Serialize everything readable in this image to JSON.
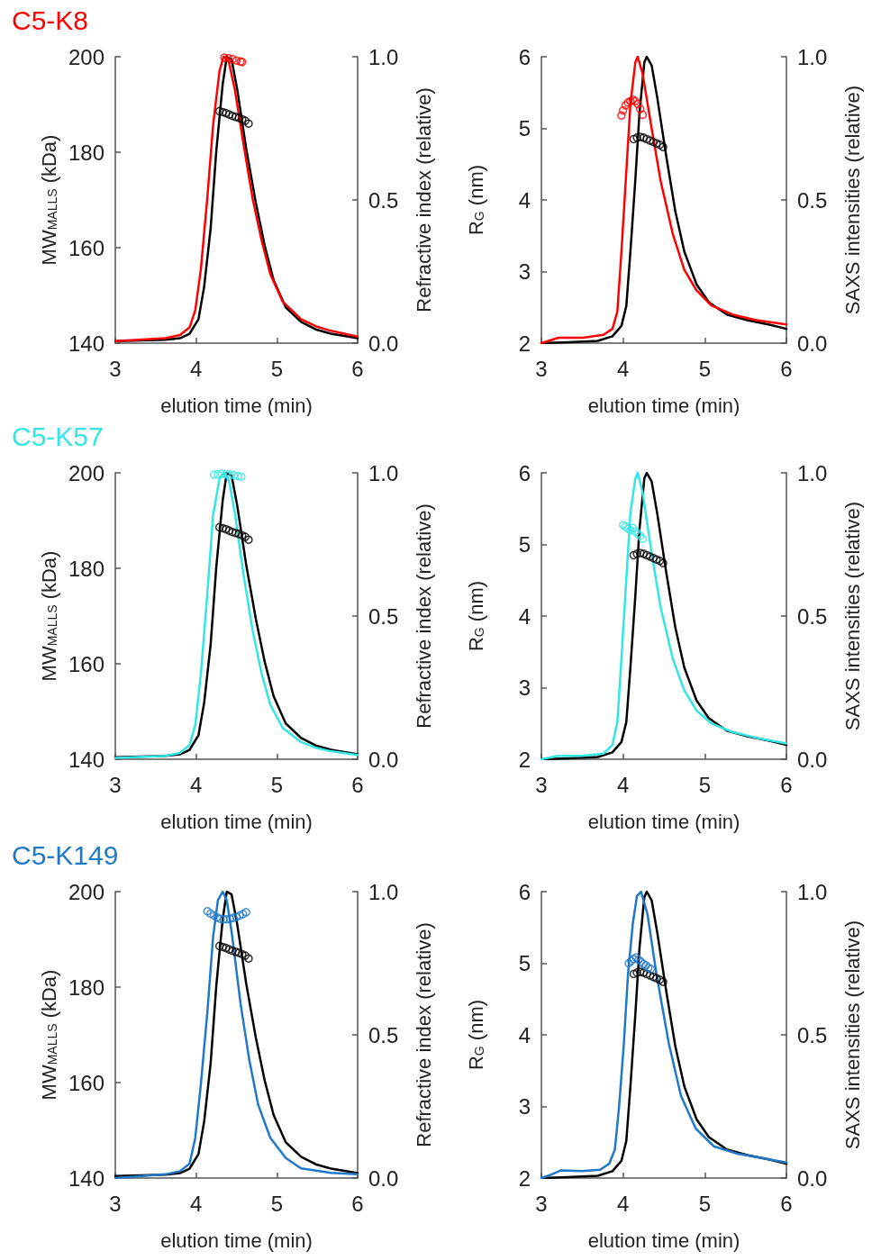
{
  "chart_data": [
    {
      "type": "line",
      "title": "C5-K8",
      "xlabel": "elution time (min)",
      "ylabel": "MW$_{MALLS}$ (kDa)",
      "y2label": "Refractive index (relative)",
      "xlim": [
        3,
        6
      ],
      "xticks": [
        3,
        4,
        5,
        6
      ],
      "ylim": [
        140,
        200
      ],
      "yticks": [
        140,
        160,
        180,
        200
      ],
      "y2lim": [
        0,
        1
      ],
      "y2ticks": [
        {
          "value": 0,
          "label": "0.0"
        },
        {
          "value": 0.5,
          "label": "0.5"
        },
        {
          "value": 1,
          "label": "1.0"
        }
      ],
      "series": [
        {
          "axis": "y2",
          "color": "#000000",
          "x": [
            3,
            3.62,
            3.8,
            3.92,
            4.03,
            4.1,
            4.18,
            4.25,
            4.33,
            4.38,
            4.44,
            4.51,
            4.62,
            4.74,
            4.85,
            4.96,
            5.11,
            5.3,
            5.48,
            5.67,
            6
          ],
          "values": [
            0.007,
            0.012,
            0.017,
            0.033,
            0.084,
            0.197,
            0.4,
            0.67,
            0.905,
            1,
            0.99,
            0.885,
            0.68,
            0.49,
            0.34,
            0.22,
            0.125,
            0.074,
            0.048,
            0.033,
            0.017
          ]
        },
        {
          "axis": "y2",
          "color": "#ff0000",
          "x": [
            3,
            3.62,
            3.8,
            3.92,
            3.99,
            4.06,
            4.14,
            4.21,
            4.29,
            4.34,
            4.4,
            4.48,
            4.59,
            4.7,
            4.81,
            4.92,
            5.07,
            5.3,
            5.48,
            5.67,
            6
          ],
          "values": [
            0.007,
            0.017,
            0.028,
            0.055,
            0.115,
            0.26,
            0.51,
            0.76,
            0.95,
            1,
            0.99,
            0.885,
            0.69,
            0.505,
            0.36,
            0.24,
            0.146,
            0.084,
            0.059,
            0.043,
            0.023
          ]
        },
        {
          "type": "scatter",
          "color": "#000000",
          "x": [
            4.29,
            4.33,
            4.37,
            4.41,
            4.45,
            4.49,
            4.53,
            4.57,
            4.61,
            4.65
          ],
          "values": [
            188.6,
            188.4,
            188.2,
            187.9,
            187.6,
            187.4,
            187.2,
            186.9,
            186.6,
            186.0
          ]
        },
        {
          "type": "scatter",
          "color": "#ff0000",
          "x": [
            4.35,
            4.4,
            4.45,
            4.5,
            4.55,
            4.57
          ],
          "values": [
            199.8,
            199.7,
            199.5,
            199.2,
            199.0,
            198.9
          ]
        }
      ]
    },
    {
      "type": "line",
      "xlabel": "elution time (min)",
      "ylabel": "R$_{G}$ (nm)",
      "y2label": "SAXS intensities (relative)",
      "xlim": [
        3,
        6
      ],
      "xticks": [
        3,
        4,
        5,
        6
      ],
      "ylim": [
        2,
        6
      ],
      "yticks": [
        2,
        3,
        4,
        5,
        6
      ],
      "y2lim": [
        0,
        1
      ],
      "y2ticks": [
        {
          "value": 0,
          "label": "0.0"
        },
        {
          "value": 0.5,
          "label": "0.5"
        },
        {
          "value": 1,
          "label": "1.0"
        }
      ],
      "series": [
        {
          "axis": "y2",
          "color": "#000000",
          "x": [
            3,
            3.32,
            3.69,
            3.87,
            3.98,
            4.04,
            4.09,
            4.15,
            4.2,
            4.26,
            4.29,
            4.35,
            4.42,
            4.53,
            4.64,
            4.75,
            4.9,
            5.05,
            5.27,
            5.52,
            5.78,
            6
          ],
          "values": [
            0,
            0.003,
            0.008,
            0.024,
            0.06,
            0.13,
            0.32,
            0.57,
            0.8,
            0.98,
            1,
            0.97,
            0.855,
            0.65,
            0.46,
            0.32,
            0.205,
            0.143,
            0.1,
            0.08,
            0.065,
            0.05
          ]
        },
        {
          "axis": "y2",
          "color": "#ff0000",
          "x": [
            3,
            3.21,
            3.51,
            3.76,
            3.87,
            3.93,
            3.98,
            4.04,
            4.09,
            4.15,
            4.18,
            4.24,
            4.35,
            4.46,
            4.61,
            4.75,
            4.9,
            5.08,
            5.34,
            5.63,
            6
          ],
          "values": [
            0,
            0.019,
            0.019,
            0.029,
            0.05,
            0.11,
            0.32,
            0.6,
            0.835,
            0.98,
            1,
            0.94,
            0.75,
            0.566,
            0.38,
            0.256,
            0.184,
            0.132,
            0.1,
            0.08,
            0.065
          ]
        },
        {
          "type": "scatter",
          "color": "#000000",
          "x": [
            4.13,
            4.17,
            4.21,
            4.25,
            4.29,
            4.33,
            4.37,
            4.41,
            4.45,
            4.49
          ],
          "values": [
            4.85,
            4.87,
            4.88,
            4.87,
            4.85,
            4.83,
            4.81,
            4.79,
            4.77,
            4.74
          ]
        },
        {
          "type": "scatter",
          "color": "#ff0000",
          "x": [
            3.98,
            4.0,
            4.03,
            4.06,
            4.09,
            4.12,
            4.15,
            4.18,
            4.21,
            4.24
          ],
          "values": [
            5.18,
            5.25,
            5.32,
            5.36,
            5.38,
            5.4,
            5.38,
            5.34,
            5.27,
            5.19
          ]
        }
      ]
    },
    {
      "type": "line",
      "title": "C5-K57",
      "xlabel": "elution time (min)",
      "ylabel": "MW$_{MALLS}$ (kDa)",
      "y2label": "Refractive index (relative)",
      "xlim": [
        3,
        6
      ],
      "xticks": [
        3,
        4,
        5,
        6
      ],
      "ylim": [
        140,
        200
      ],
      "yticks": [
        140,
        160,
        180,
        200
      ],
      "y2lim": [
        0,
        1
      ],
      "y2ticks": [
        {
          "value": 0,
          "label": "0.0"
        },
        {
          "value": 0.5,
          "label": "0.5"
        },
        {
          "value": 1,
          "label": "1.0"
        }
      ],
      "series": [
        {
          "axis": "y2",
          "color": "#000000",
          "x": [
            3,
            3.62,
            3.8,
            3.92,
            4.03,
            4.1,
            4.18,
            4.25,
            4.33,
            4.38,
            4.44,
            4.51,
            4.62,
            4.74,
            4.85,
            4.96,
            5.11,
            5.3,
            5.48,
            5.67,
            6
          ],
          "values": [
            0.007,
            0.012,
            0.017,
            0.033,
            0.084,
            0.197,
            0.4,
            0.67,
            0.905,
            1,
            0.99,
            0.885,
            0.68,
            0.49,
            0.34,
            0.22,
            0.125,
            0.074,
            0.048,
            0.033,
            0.017
          ]
        },
        {
          "axis": "y2",
          "color": "#33e6e6",
          "x": [
            3,
            3.62,
            3.8,
            3.92,
            3.99,
            4.06,
            4.14,
            4.21,
            4.29,
            4.35,
            4.41,
            4.48,
            4.59,
            4.7,
            4.81,
            4.92,
            5.07,
            5.3,
            5.48,
            5.67,
            6
          ],
          "values": [
            0.005,
            0.012,
            0.022,
            0.05,
            0.12,
            0.3,
            0.58,
            0.85,
            0.98,
            1,
            0.97,
            0.86,
            0.64,
            0.45,
            0.3,
            0.19,
            0.11,
            0.06,
            0.04,
            0.028,
            0.015
          ]
        },
        {
          "type": "scatter",
          "color": "#000000",
          "x": [
            4.29,
            4.33,
            4.37,
            4.41,
            4.45,
            4.49,
            4.53,
            4.57,
            4.61,
            4.65
          ],
          "values": [
            188.6,
            188.4,
            188.2,
            187.9,
            187.6,
            187.4,
            187.2,
            186.9,
            186.6,
            186.0
          ]
        },
        {
          "type": "scatter",
          "color": "#33e6e6",
          "x": [
            4.22,
            4.27,
            4.32,
            4.37,
            4.42,
            4.47,
            4.52,
            4.56
          ],
          "values": [
            199.6,
            199.7,
            199.8,
            199.7,
            199.6,
            199.5,
            199.3,
            199.2
          ]
        }
      ]
    },
    {
      "type": "line",
      "xlabel": "elution time (min)",
      "ylabel": "R$_{G}$ (nm)",
      "y2label": "SAXS intensities (relative)",
      "xlim": [
        3,
        6
      ],
      "xticks": [
        3,
        4,
        5,
        6
      ],
      "ylim": [
        2,
        6
      ],
      "yticks": [
        2,
        3,
        4,
        5,
        6
      ],
      "y2lim": [
        0,
        1
      ],
      "y2ticks": [
        {
          "value": 0,
          "label": "0.0"
        },
        {
          "value": 0.5,
          "label": "0.5"
        },
        {
          "value": 1,
          "label": "1.0"
        }
      ],
      "series": [
        {
          "axis": "y2",
          "color": "#000000",
          "x": [
            3,
            3.32,
            3.69,
            3.87,
            3.98,
            4.04,
            4.09,
            4.15,
            4.2,
            4.26,
            4.29,
            4.35,
            4.42,
            4.53,
            4.64,
            4.75,
            4.9,
            5.05,
            5.27,
            5.52,
            5.78,
            6
          ],
          "values": [
            0,
            0.003,
            0.008,
            0.024,
            0.06,
            0.13,
            0.32,
            0.57,
            0.8,
            0.98,
            1,
            0.97,
            0.855,
            0.65,
            0.46,
            0.32,
            0.205,
            0.143,
            0.1,
            0.08,
            0.065,
            0.05
          ]
        },
        {
          "axis": "y2",
          "color": "#33e6e6",
          "x": [
            3,
            3.2,
            3.5,
            3.76,
            3.87,
            3.93,
            3.98,
            4.04,
            4.09,
            4.15,
            4.18,
            4.24,
            4.35,
            4.46,
            4.61,
            4.75,
            4.9,
            5.08,
            5.34,
            5.63,
            6
          ],
          "values": [
            0,
            0.012,
            0.012,
            0.02,
            0.05,
            0.13,
            0.35,
            0.63,
            0.86,
            0.98,
            1,
            0.93,
            0.72,
            0.53,
            0.35,
            0.24,
            0.17,
            0.125,
            0.095,
            0.075,
            0.055
          ]
        },
        {
          "type": "scatter",
          "color": "#000000",
          "x": [
            4.13,
            4.17,
            4.21,
            4.25,
            4.29,
            4.33,
            4.37,
            4.41,
            4.45,
            4.49
          ],
          "values": [
            4.85,
            4.87,
            4.88,
            4.87,
            4.85,
            4.83,
            4.81,
            4.79,
            4.77,
            4.74
          ]
        },
        {
          "type": "scatter",
          "color": "#33e6e6",
          "x": [
            4.0,
            4.03,
            4.06,
            4.09,
            4.12,
            4.15,
            4.18,
            4.21,
            4.24
          ],
          "values": [
            5.27,
            5.25,
            5.22,
            5.2,
            5.23,
            5.18,
            5.15,
            5.12,
            5.08
          ]
        }
      ]
    },
    {
      "type": "line",
      "title": "C5-K149",
      "xlabel": "elution time (min)",
      "ylabel": "MW$_{MALLS}$ (kDa)",
      "y2label": "Refractive index (relative)",
      "xlim": [
        3,
        6
      ],
      "xticks": [
        3,
        4,
        5,
        6
      ],
      "ylim": [
        140,
        200
      ],
      "yticks": [
        140,
        160,
        180,
        200
      ],
      "y2lim": [
        0,
        1
      ],
      "y2ticks": [
        {
          "value": 0,
          "label": "0.0"
        },
        {
          "value": 0.5,
          "label": "0.5"
        },
        {
          "value": 1,
          "label": "1.0"
        }
      ],
      "series": [
        {
          "axis": "y2",
          "color": "#000000",
          "x": [
            3,
            3.62,
            3.8,
            3.92,
            4.03,
            4.1,
            4.18,
            4.25,
            4.33,
            4.38,
            4.44,
            4.51,
            4.62,
            4.74,
            4.85,
            4.96,
            5.11,
            5.3,
            5.48,
            5.67,
            6
          ],
          "values": [
            0.007,
            0.012,
            0.017,
            0.033,
            0.084,
            0.197,
            0.4,
            0.67,
            0.905,
            1,
            0.99,
            0.885,
            0.68,
            0.49,
            0.34,
            0.22,
            0.125,
            0.074,
            0.048,
            0.033,
            0.017
          ]
        },
        {
          "axis": "y2",
          "color": "#1f78c8",
          "x": [
            3,
            3.62,
            3.8,
            3.92,
            3.99,
            4.06,
            4.14,
            4.21,
            4.27,
            4.33,
            4.38,
            4.44,
            4.55,
            4.66,
            4.77,
            4.92,
            5.11,
            5.3,
            5.67,
            6
          ],
          "values": [
            0,
            0.013,
            0.024,
            0.05,
            0.14,
            0.33,
            0.58,
            0.84,
            0.97,
            1,
            0.97,
            0.86,
            0.61,
            0.41,
            0.255,
            0.14,
            0.07,
            0.034,
            0.018,
            0.013
          ]
        },
        {
          "type": "scatter",
          "color": "#000000",
          "x": [
            4.29,
            4.33,
            4.37,
            4.41,
            4.45,
            4.49,
            4.53,
            4.57,
            4.61,
            4.65
          ],
          "values": [
            188.6,
            188.4,
            188.2,
            187.9,
            187.6,
            187.4,
            187.2,
            186.9,
            186.6,
            186.0
          ]
        },
        {
          "type": "scatter",
          "color": "#1f78c8",
          "x": [
            4.14,
            4.18,
            4.22,
            4.26,
            4.3,
            4.34,
            4.38,
            4.42,
            4.46,
            4.5,
            4.54,
            4.58,
            4.62
          ],
          "values": [
            195.9,
            195.4,
            195.0,
            194.6,
            194.3,
            194.2,
            194.2,
            194.3,
            194.5,
            194.7,
            195.0,
            195.3,
            195.7
          ]
        }
      ]
    },
    {
      "type": "line",
      "xlabel": "elution time (min)",
      "ylabel": "R$_{G}$ (nm)",
      "y2label": "SAXS intensities (relative)",
      "xlim": [
        3,
        6
      ],
      "xticks": [
        3,
        4,
        5,
        6
      ],
      "ylim": [
        2,
        6
      ],
      "yticks": [
        2,
        3,
        4,
        5,
        6
      ],
      "y2lim": [
        0,
        1
      ],
      "y2ticks": [
        {
          "value": 0,
          "label": "0.0"
        },
        {
          "value": 0.5,
          "label": "0.5"
        },
        {
          "value": 1,
          "label": "1.0"
        }
      ],
      "series": [
        {
          "axis": "y2",
          "color": "#000000",
          "x": [
            3,
            3.32,
            3.69,
            3.87,
            3.98,
            4.04,
            4.09,
            4.15,
            4.2,
            4.26,
            4.29,
            4.35,
            4.42,
            4.53,
            4.64,
            4.75,
            4.9,
            5.05,
            5.27,
            5.52,
            5.78,
            6
          ],
          "values": [
            0,
            0.003,
            0.008,
            0.024,
            0.06,
            0.13,
            0.32,
            0.57,
            0.8,
            0.98,
            1,
            0.97,
            0.855,
            0.65,
            0.46,
            0.32,
            0.205,
            0.143,
            0.1,
            0.08,
            0.065,
            0.05
          ]
        },
        {
          "axis": "y2",
          "color": "#1f78c8",
          "x": [
            3,
            3.13,
            3.24,
            3.5,
            3.72,
            3.83,
            3.9,
            3.95,
            4.01,
            4.06,
            4.12,
            4.17,
            4.22,
            4.3,
            4.41,
            4.56,
            4.71,
            4.89,
            5.11,
            5.4,
            5.7,
            6
          ],
          "values": [
            0,
            0.013,
            0.027,
            0.024,
            0.029,
            0.05,
            0.1,
            0.245,
            0.47,
            0.71,
            0.89,
            0.985,
            1,
            0.92,
            0.71,
            0.47,
            0.286,
            0.173,
            0.111,
            0.085,
            0.07,
            0.054
          ]
        },
        {
          "type": "scatter",
          "color": "#000000",
          "x": [
            4.13,
            4.17,
            4.21,
            4.25,
            4.29,
            4.33,
            4.37,
            4.41,
            4.45,
            4.49
          ],
          "values": [
            4.85,
            4.87,
            4.88,
            4.87,
            4.85,
            4.83,
            4.81,
            4.79,
            4.77,
            4.74
          ]
        },
        {
          "type": "scatter",
          "color": "#1f78c8",
          "x": [
            4.07,
            4.1,
            4.13,
            4.16,
            4.19,
            4.22,
            4.25,
            4.28,
            4.31,
            4.34
          ],
          "values": [
            5.0,
            5.03,
            5.06,
            5.08,
            5.05,
            5.02,
            4.99,
            4.97,
            4.94,
            4.92
          ]
        }
      ]
    }
  ]
}
